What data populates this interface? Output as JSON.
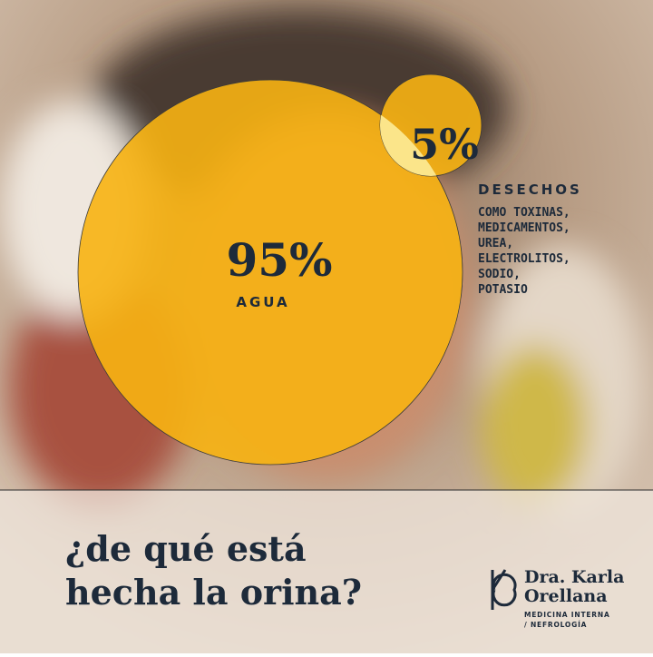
{
  "big_circle": {
    "percent": "95%",
    "label": "AGUA"
  },
  "small_circle": {
    "percent": "5%",
    "label": "DESECHOS",
    "details": [
      "COMO TOXINAS,",
      "MEDICAMENTOS,",
      "UREA,",
      "ELECTROLITOS,",
      "SODIO,",
      "POTASIO"
    ]
  },
  "title": [
    "¿de qué está",
    "hecha la orina?"
  ],
  "brand": {
    "name": [
      "Dra. Karla",
      "Orellana"
    ],
    "subtitle": [
      "MEDICINA INTERNA",
      "/ NEFROLOGÍA"
    ]
  }
}
